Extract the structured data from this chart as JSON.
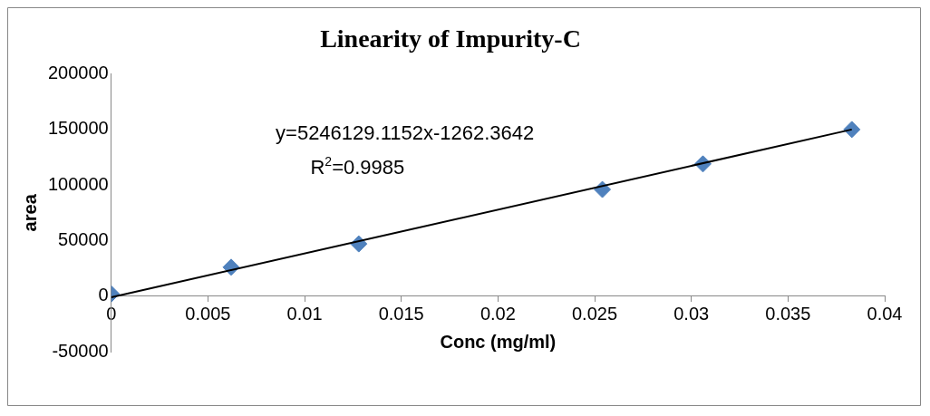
{
  "chart_data": {
    "type": "scatter",
    "title": "Linearity of Impurity-C",
    "xlabel": "Conc (mg/ml)",
    "ylabel": "area",
    "x": [
      0,
      0.0062,
      0.0128,
      0.0254,
      0.0306,
      0.0383
    ],
    "series": [
      {
        "type": "scatter",
        "color": "#4f81bd",
        "marker": "diamond",
        "values": [
          2000,
          26000,
          47000,
          96000,
          119000,
          150000
        ]
      },
      {
        "type": "line",
        "color": "#000000",
        "marker": "none",
        "x": [
          0,
          0.0383
        ],
        "values": [
          -1000,
          150000
        ]
      }
    ],
    "xlim": [
      0,
      0.04
    ],
    "xticks": [
      0,
      0.005,
      0.01,
      0.015,
      0.02,
      0.025,
      0.03,
      0.035,
      0.04
    ],
    "ylim": [
      -50000,
      200000
    ],
    "yticks": [
      -50000,
      0,
      50000,
      100000,
      150000,
      200000
    ],
    "grid": false,
    "legend": false,
    "annotations": [
      "y=5246129.1152x-1262.3642",
      "R$^{2}$=0.9985"
    ]
  }
}
